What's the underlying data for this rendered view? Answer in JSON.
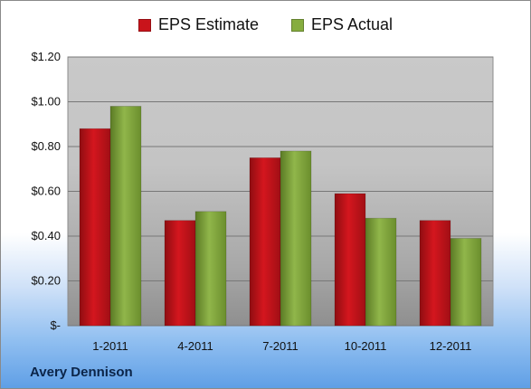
{
  "chart_data": {
    "type": "bar",
    "categories": [
      "1-2011",
      "4-2011",
      "7-2011",
      "10-2011",
      "12-2011"
    ],
    "series": [
      {
        "name": "EPS Estimate",
        "values": [
          0.88,
          0.47,
          0.75,
          0.59,
          0.47
        ],
        "color": "#c9141b"
      },
      {
        "name": "EPS Actual",
        "values": [
          0.98,
          0.51,
          0.78,
          0.48,
          0.39
        ],
        "color": "#86ad3f"
      }
    ],
    "title": "",
    "xlabel": "",
    "ylabel": "",
    "ylim": [
      0,
      1.2
    ],
    "yticks": [
      0,
      0.2,
      0.4,
      0.6,
      0.8,
      1.0,
      1.2
    ],
    "ytick_labels": [
      "$-",
      "$0.20",
      "$0.40",
      "$0.60",
      "$0.80",
      "$1.00",
      "$1.20"
    ],
    "grid": true,
    "legend_position": "top-center"
  },
  "footer": {
    "company": "Avery Dennison"
  }
}
